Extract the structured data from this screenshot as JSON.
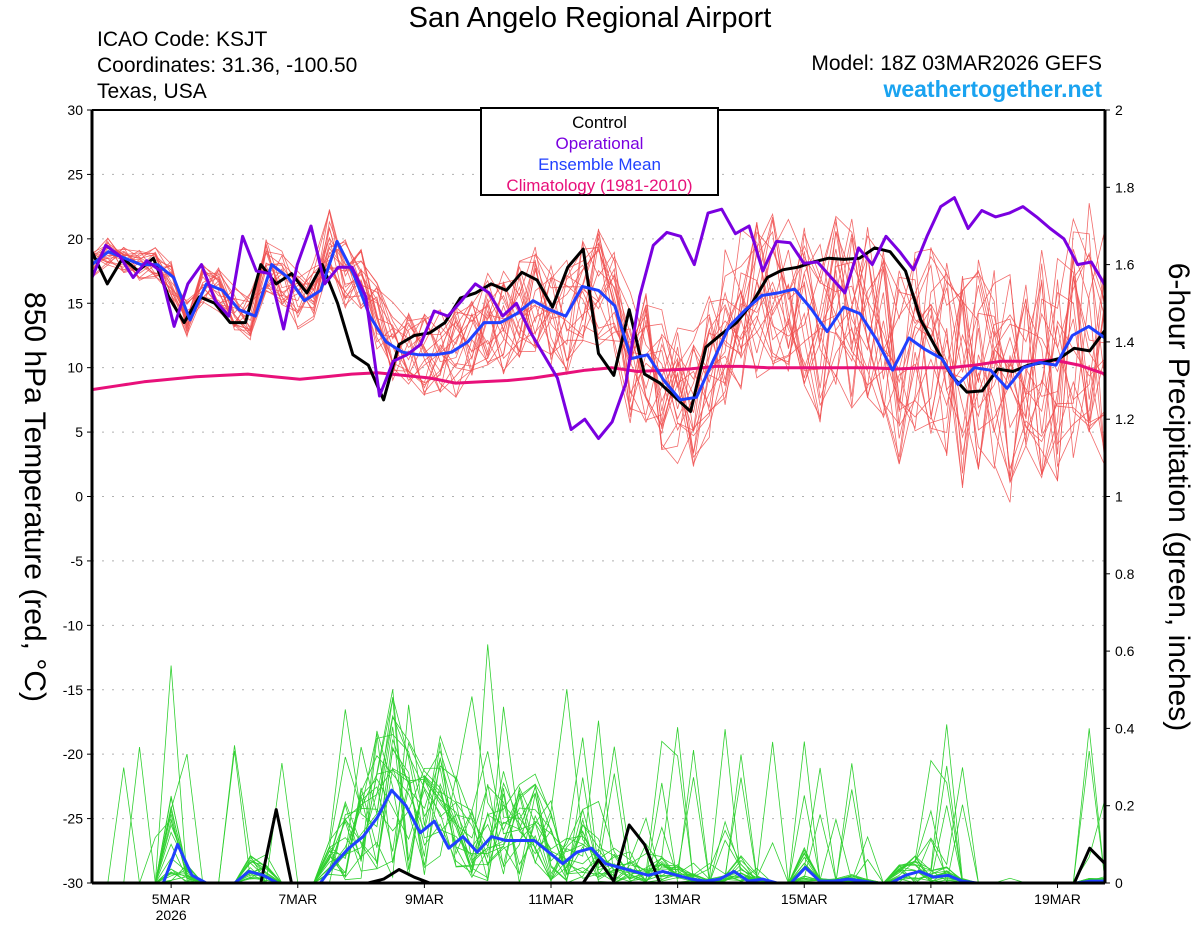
{
  "header": {
    "title": "San Angelo Regional Airport",
    "icao": "ICAO Code: KSJT",
    "coordinates": "Coordinates: 31.36, -100.50",
    "region": "Texas, USA",
    "model": "Model: 18Z 03MAR2026 GEFS",
    "brand": "weathertogether.net"
  },
  "colors": {
    "control": "#000000",
    "operational": "#7a00e0",
    "ensemble_mean": "#2040ff",
    "climatology": "#e8107a",
    "members_temp": "#f05050",
    "members_precip": "#30d030",
    "brand": "#1aa3f0",
    "grid": "#b0b0b0"
  },
  "chart_data": {
    "type": "line",
    "title": "San Angelo Regional Airport",
    "xlabel": "",
    "ylabel_left": "850 hPa Temperature (red, °C)",
    "ylabel_right": "6-hour Precipitation (green, inches)",
    "ylim_left": [
      -30,
      30
    ],
    "ylim_right": [
      0,
      2
    ],
    "yticks_left": [
      "30",
      "25",
      "20",
      "15",
      "10",
      "5",
      "0",
      "-5",
      "-10",
      "-15",
      "-20",
      "-25",
      "-30"
    ],
    "yticks_right": [
      "2",
      "1.8",
      "1.6",
      "1.4",
      "1.2",
      "1",
      "0.8",
      "0.6",
      "0.4",
      "0.2",
      "0"
    ],
    "x_range_days": [
      0,
      16
    ],
    "x_note": "x in days after 03MAR2026 18Z; 6-hourly steps",
    "xticks": [
      {
        "day": 1.25,
        "label": "5MAR",
        "sublabel": "2026"
      },
      {
        "day": 3.25,
        "label": "7MAR",
        "sublabel": ""
      },
      {
        "day": 5.25,
        "label": "9MAR",
        "sublabel": ""
      },
      {
        "day": 7.25,
        "label": "11MAR",
        "sublabel": ""
      },
      {
        "day": 9.25,
        "label": "13MAR",
        "sublabel": ""
      },
      {
        "day": 11.25,
        "label": "15MAR",
        "sublabel": ""
      },
      {
        "day": 13.25,
        "label": "17MAR",
        "sublabel": ""
      },
      {
        "day": 15.25,
        "label": "19MAR",
        "sublabel": ""
      }
    ],
    "grid": true,
    "legend_position": "top-center",
    "legend": [
      {
        "label": "Control",
        "color": "#000000"
      },
      {
        "label": "Operational",
        "color": "#7a00e0"
      },
      {
        "label": "Ensemble Mean",
        "color": "#2040ff"
      },
      {
        "label": "Climatology (1981-2010)",
        "color": "#e8107a"
      }
    ],
    "temperature_series": [
      {
        "name": "Control",
        "values": [
          19,
          16.5,
          18.5,
          17.5,
          18.5,
          15.5,
          13.5,
          15.5,
          15,
          13.5,
          13.5,
          18,
          16.5,
          17.3,
          15.8,
          18,
          15,
          11,
          10.2,
          7.5,
          11.8,
          12.5,
          12.7,
          13.5,
          15.4,
          15.8,
          16.5,
          16,
          17.4,
          16.8,
          14.7,
          17.8,
          19.2,
          11.1,
          9.4,
          14.5,
          9.5,
          8.8,
          7.7,
          6.6,
          11.6,
          12.6,
          13.5,
          15,
          17,
          17.6,
          17.8,
          18.2,
          18.5,
          18.4,
          18.5,
          19.3,
          19,
          17.5,
          13.7,
          11.5,
          9.4,
          8.1,
          8.2,
          9.9,
          9.7,
          10.2,
          10.4,
          10.7,
          11.5,
          11.3,
          12.9
        ]
      },
      {
        "name": "Operational",
        "values": [
          17,
          19.5,
          18.7,
          17,
          18.3,
          17.5,
          13.2,
          16.5,
          18,
          15.2,
          14,
          20.2,
          17.5,
          17.3,
          13,
          18,
          21,
          16.5,
          17.8,
          17.8,
          15.5,
          7.8,
          10.5,
          11,
          11.8,
          14.4,
          14,
          15.2,
          16.5,
          15.8,
          14,
          15,
          12.8,
          11,
          9.2,
          5.2,
          6,
          4.5,
          5.8,
          8.8,
          15.5,
          19.5,
          20.5,
          20.2,
          18,
          22,
          22.3,
          20.4,
          21,
          17.5,
          19.8,
          19.7,
          18.1,
          18.2,
          17,
          15.8,
          19.3,
          18,
          20.2,
          19,
          17.6,
          20.2,
          22.5,
          23.2,
          20.8,
          22.2,
          21.7,
          22,
          22.5,
          21.7,
          20.8,
          20,
          18,
          18.2,
          16.4
        ]
      },
      {
        "name": "Ensemble Mean",
        "values": [
          18,
          19,
          18.5,
          18,
          18,
          17,
          13.7,
          16.5,
          16,
          14.5,
          14,
          18,
          17,
          15.2,
          16,
          19.8,
          17.3,
          14,
          12,
          11.2,
          11,
          11,
          11.2,
          12,
          13.5,
          13.5,
          14.2,
          15.2,
          14.5,
          14,
          16.3,
          16,
          14.8,
          10.7,
          11,
          9,
          7.5,
          7.7,
          10.5,
          13.2,
          14.5,
          15.6,
          15.8,
          16.1,
          14.6,
          12.8,
          14.7,
          14.2,
          12.2,
          9.8,
          12.3,
          11.4,
          10.7,
          8.7,
          10,
          9.8,
          8.4,
          10,
          10.4,
          10.2,
          12.5,
          13.2,
          12.3
        ]
      },
      {
        "name": "Climatology (1981-2010)",
        "values": [
          8.3,
          8.6,
          8.9,
          9.1,
          9.3,
          9.4,
          9.5,
          9.3,
          9.1,
          9.3,
          9.5,
          9.6,
          9.4,
          9.2,
          8.8,
          8.9,
          9.0,
          9.2,
          9.5,
          9.8,
          10.0,
          9.7,
          9.8,
          9.9,
          10.1,
          10.1,
          10.0,
          10.0,
          10.0,
          10.0,
          10.0,
          9.9,
          10.0,
          10.0,
          10.2,
          10.5,
          10.5,
          10.6,
          10.2,
          9.5
        ]
      }
    ],
    "precipitation_series": [
      {
        "name": "Control",
        "values": [
          0,
          0,
          0,
          0,
          0,
          0,
          0,
          0,
          0,
          0,
          0,
          0,
          0.19,
          0,
          0,
          0,
          0,
          0,
          0,
          0.01,
          0.035,
          0.015,
          0,
          0,
          0,
          0,
          0,
          0,
          0,
          0,
          0,
          0,
          0,
          0.06,
          0.005,
          0.15,
          0.1,
          0,
          0,
          0,
          0,
          0,
          0,
          0,
          0,
          0,
          0,
          0,
          0,
          0,
          0,
          0,
          0,
          0,
          0,
          0,
          0,
          0,
          0,
          0,
          0,
          0,
          0,
          0,
          0,
          0.09,
          0.05
        ]
      },
      {
        "name": "Ensemble Mean",
        "values": [
          0,
          0,
          0,
          0,
          0,
          0,
          0.1,
          0.02,
          0,
          0,
          0,
          0.03,
          0.02,
          0,
          0,
          0,
          0,
          0.05,
          0.09,
          0.12,
          0.17,
          0.24,
          0.2,
          0.13,
          0.16,
          0.09,
          0.12,
          0.08,
          0.12,
          0.11,
          0.11,
          0.11,
          0.08,
          0.05,
          0.08,
          0.09,
          0.05,
          0.04,
          0.03,
          0.02,
          0.03,
          0.02,
          0.01,
          0.005,
          0.01,
          0.03,
          0.005,
          0.01,
          0.0,
          0,
          0.04,
          0.005,
          0.005,
          0.01,
          0.005,
          0,
          0,
          0.02,
          0.03,
          0.015,
          0.02,
          0.005,
          0,
          0,
          0,
          0,
          0,
          0,
          0,
          0,
          0.005,
          0.005
        ]
      }
    ],
    "ensemble_members": "21 GEFS members shown as thin red (temperature) and thin green (precipitation) lines"
  }
}
